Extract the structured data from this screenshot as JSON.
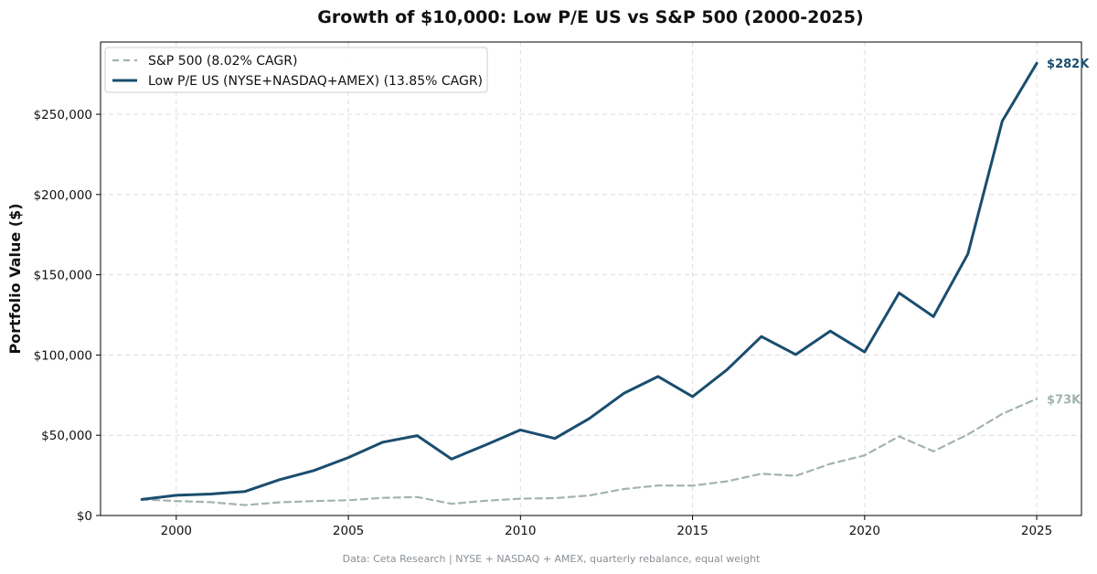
{
  "chart_data": {
    "type": "line",
    "title": "Growth of $10,000: Low P/E US vs S&P 500 (2000-2025)",
    "xlabel": "",
    "ylabel": "Portfolio Value ($)",
    "xlim": [
      1997.8,
      2026.3
    ],
    "ylim": [
      0,
      295000
    ],
    "x_ticks": [
      2000,
      2005,
      2010,
      2015,
      2020,
      2025
    ],
    "y_ticks": [
      0,
      50000,
      100000,
      150000,
      200000,
      250000
    ],
    "y_tick_labels": [
      "$0",
      "$50,000",
      "$100,000",
      "$150,000",
      "$200,000",
      "$250,000"
    ],
    "grid": true,
    "legend_position": "top-left",
    "footnote": "Data: Ceta Research | NYSE + NASDAQ + AMEX, quarterly rebalance, equal weight",
    "x": [
      1999,
      2000,
      2001,
      2002,
      2003,
      2004,
      2005,
      2006,
      2007,
      2008,
      2009,
      2010,
      2011,
      2012,
      2013,
      2014,
      2015,
      2016,
      2017,
      2018,
      2019,
      2020,
      2021,
      2022,
      2023,
      2024,
      2025
    ],
    "series": [
      {
        "name": "S&P 500 (8.02% CAGR)",
        "color": "#a3b3b0",
        "style": "dashed",
        "end_label": "$73K",
        "values": [
          10000,
          9000,
          8300,
          6500,
          8200,
          9000,
          9500,
          11000,
          11500,
          7300,
          9200,
          10500,
          10800,
          12500,
          16500,
          18700,
          18600,
          21300,
          26000,
          24700,
          32200,
          37500,
          49300,
          40000,
          50500,
          63300,
          72700
        ]
      },
      {
        "name": "Low P/E US (NYSE+NASDAQ+AMEX) (13.85% CAGR)",
        "color": "#1a4d6e",
        "style": "solid",
        "end_label": "$282K",
        "values": [
          10000,
          12600,
          13400,
          15000,
          22300,
          28000,
          36100,
          45700,
          49800,
          35200,
          44100,
          53300,
          48000,
          60400,
          76100,
          86600,
          74100,
          90800,
          111500,
          100300,
          114900,
          101900,
          138700,
          123900,
          163000,
          245800,
          281800
        ]
      }
    ]
  }
}
